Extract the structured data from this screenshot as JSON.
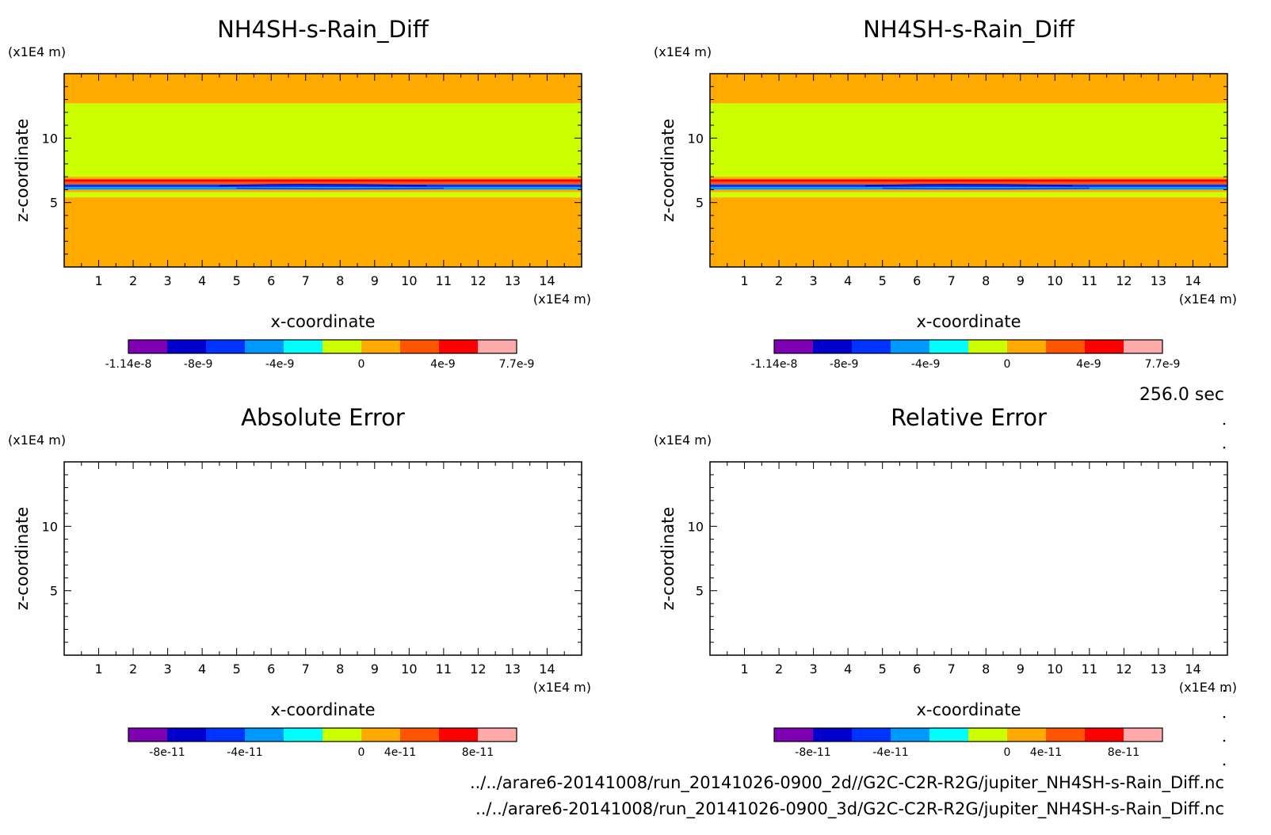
{
  "time_label": "256.0 sec",
  "files": [
    "../../arare6-20141008/run_20141026-0900_2d//G2C-C2R-R2G/jupiter_NH4SH-s-Rain_Diff.nc",
    "../../arare6-20141008/run_20141026-0900_3d/G2C-C2R-R2G/jupiter_NH4SH-s-Rain_Diff.nc"
  ],
  "colors": {
    "bands": [
      "#7f00b2",
      "#0000cc",
      "#0033ff",
      "#0099ff",
      "#00ffff",
      "#ccff00",
      "#ffaa00",
      "#ff5500",
      "#ff0000",
      "#ffaaaa"
    ],
    "axis": "#000000"
  },
  "chart_data": [
    {
      "type": "heatmap",
      "title": "NH4SH-s-Rain_Diff",
      "xlabel": "x-coordinate",
      "ylabel": "z-coordinate",
      "x_unit": "(x1E4 m)",
      "y_unit": "(x1E4 m)",
      "xlim": [
        0,
        15
      ],
      "ylim": [
        0,
        15
      ],
      "x_ticks": [
        "1",
        "2",
        "3",
        "4",
        "5",
        "6",
        "7",
        "8",
        "9",
        "10",
        "11",
        "12",
        "13",
        "14"
      ],
      "y_ticks": [
        "5",
        "10"
      ],
      "layers": [
        {
          "z_from": 12.7,
          "z_to": 15.0,
          "value": "0 to 2e-9"
        },
        {
          "z_from": 7.0,
          "z_to": 12.7,
          "value": "-2e-9 to 0"
        },
        {
          "z_from": 6.8,
          "z_to": 7.0,
          "value": "0 to 2e-9"
        },
        {
          "z_from": 6.6,
          "z_to": 6.8,
          "value": "4e-9 to 6e-9"
        },
        {
          "z_from": 6.4,
          "z_to": 6.6,
          "value": "2e-9 to 4e-9"
        },
        {
          "z_from": 6.2,
          "z_to": 6.4,
          "value": "-6e-9 to -4e-9"
        },
        {
          "z_from": 6.0,
          "z_to": 6.2,
          "value": "-4e-9 to -2e-9"
        },
        {
          "z_from": 5.8,
          "z_to": 6.0,
          "value": "0 to 2e-9"
        },
        {
          "z_from": 5.4,
          "z_to": 5.8,
          "value": "-2e-9 to 0"
        },
        {
          "z_from": 0.0,
          "z_to": 5.4,
          "value": "0 to 2e-9"
        }
      ],
      "colorbar_labels": [
        "-1.14e-8",
        "-8e-9",
        "-4e-9",
        "0",
        "4e-9",
        "7.7e-9"
      ]
    },
    {
      "type": "heatmap",
      "title": "NH4SH-s-Rain_Diff",
      "xlabel": "x-coordinate",
      "ylabel": "z-coordinate",
      "x_unit": "(x1E4 m)",
      "y_unit": "(x1E4 m)",
      "xlim": [
        0,
        15
      ],
      "ylim": [
        0,
        15
      ],
      "x_ticks": [
        "1",
        "2",
        "3",
        "4",
        "5",
        "6",
        "7",
        "8",
        "9",
        "10",
        "11",
        "12",
        "13",
        "14"
      ],
      "y_ticks": [
        "5",
        "10"
      ],
      "layers": [
        {
          "z_from": 12.7,
          "z_to": 15.0,
          "value": "0 to 2e-9"
        },
        {
          "z_from": 7.0,
          "z_to": 12.7,
          "value": "-2e-9 to 0"
        },
        {
          "z_from": 6.8,
          "z_to": 7.0,
          "value": "0 to 2e-9"
        },
        {
          "z_from": 6.6,
          "z_to": 6.8,
          "value": "4e-9 to 6e-9"
        },
        {
          "z_from": 6.4,
          "z_to": 6.6,
          "value": "2e-9 to 4e-9"
        },
        {
          "z_from": 6.2,
          "z_to": 6.4,
          "value": "-6e-9 to -4e-9"
        },
        {
          "z_from": 6.0,
          "z_to": 6.2,
          "value": "-4e-9 to -2e-9"
        },
        {
          "z_from": 5.8,
          "z_to": 6.0,
          "value": "0 to 2e-9"
        },
        {
          "z_from": 5.4,
          "z_to": 5.8,
          "value": "-2e-9 to 0"
        },
        {
          "z_from": 0.0,
          "z_to": 5.4,
          "value": "0 to 2e-9"
        }
      ],
      "colorbar_labels": [
        "-1.14e-8",
        "-8e-9",
        "-4e-9",
        "0",
        "4e-9",
        "7.7e-9"
      ]
    },
    {
      "type": "heatmap",
      "title": "Absolute Error",
      "xlabel": "x-coordinate",
      "ylabel": "z-coordinate",
      "x_unit": "(x1E4 m)",
      "y_unit": "(x1E4 m)",
      "xlim": [
        0,
        15
      ],
      "ylim": [
        0,
        15
      ],
      "x_ticks": [
        "1",
        "2",
        "3",
        "4",
        "5",
        "6",
        "7",
        "8",
        "9",
        "10",
        "11",
        "12",
        "13",
        "14"
      ],
      "y_ticks": [
        "5",
        "10"
      ],
      "layers": [],
      "colorbar_labels": [
        "-8e-11",
        "-4e-11",
        "0",
        "4e-11",
        "8e-11"
      ]
    },
    {
      "type": "heatmap",
      "title": "Relative Error",
      "xlabel": "x-coordinate",
      "ylabel": "z-coordinate",
      "x_unit": "(x1E4 m)",
      "y_unit": "(x1E4 m)",
      "xlim": [
        0,
        15
      ],
      "ylim": [
        0,
        15
      ],
      "x_ticks": [
        "1",
        "2",
        "3",
        "4",
        "5",
        "6",
        "7",
        "8",
        "9",
        "10",
        "11",
        "12",
        "13",
        "14"
      ],
      "y_ticks": [
        "5",
        "10"
      ],
      "layers": [],
      "colorbar_labels": [
        "-8e-11",
        "-4e-11",
        "0",
        "4e-11",
        "8e-11"
      ]
    }
  ]
}
